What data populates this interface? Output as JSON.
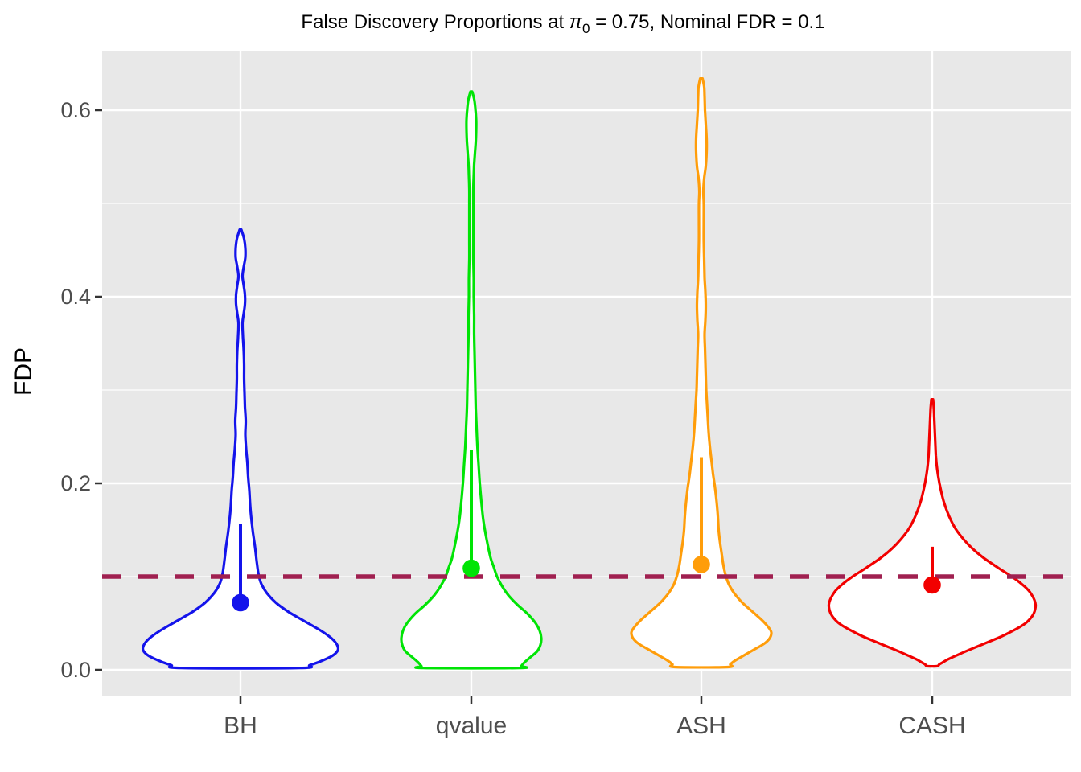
{
  "title": {
    "prefix": "False Discovery Proportions at ",
    "pi": "π",
    "pi_sub": "0",
    "suffix": " = 0.75, Nominal FDR = 0.1"
  },
  "y_axis": {
    "label": "FDP",
    "tick_labels": [
      "0.0",
      "0.2",
      "0.4",
      "0.6"
    ],
    "tick_values": [
      0.0,
      0.2,
      0.4,
      0.6
    ],
    "minor_values": [
      0.1,
      0.3,
      0.5
    ]
  },
  "x_axis": {
    "categories": [
      "BH",
      "qvalue",
      "ASH",
      "CASH"
    ]
  },
  "reference_line": {
    "value": 0.1,
    "color": "#A02050",
    "style": "dashed"
  },
  "panel": {
    "background": "#E8E8E8",
    "gridline_color": "#FFFFFF",
    "tick_color": "#333333",
    "axis_text_color": "#4D4D4D"
  },
  "chart_data": {
    "type": "violin",
    "title": "False Discovery Proportions at π0 = 0.75, Nominal FDR = 0.1",
    "xlabel": "",
    "ylabel": "FDP",
    "ylim": [
      -0.028,
      0.664
    ],
    "y_breaks": [
      0.0,
      0.2,
      0.4,
      0.6
    ],
    "y_minor_breaks": [
      0.1,
      0.3,
      0.5
    ],
    "grid": true,
    "nominal_fdr": 0.1,
    "pi0": 0.75,
    "categories": [
      "BH",
      "qvalue",
      "ASH",
      "CASH"
    ],
    "series": [
      {
        "name": "BH",
        "color": "#1414EB",
        "mean": 0.072,
        "upper": 0.156,
        "max": 0.472,
        "min": 0.002,
        "profile": [
          [
            0.472,
            1
          ],
          [
            0.462,
            4.5
          ],
          [
            0.452,
            6
          ],
          [
            0.442,
            6
          ],
          [
            0.432,
            4
          ],
          [
            0.422,
            2.5
          ],
          [
            0.412,
            4
          ],
          [
            0.402,
            5.5
          ],
          [
            0.392,
            5.5
          ],
          [
            0.382,
            4
          ],
          [
            0.372,
            2.5
          ],
          [
            0.357,
            3
          ],
          [
            0.342,
            4
          ],
          [
            0.327,
            4.5
          ],
          [
            0.312,
            4.5
          ],
          [
            0.297,
            5
          ],
          [
            0.282,
            5.5
          ],
          [
            0.267,
            6.5
          ],
          [
            0.252,
            6
          ],
          [
            0.237,
            7
          ],
          [
            0.222,
            8.5
          ],
          [
            0.207,
            9.5
          ],
          [
            0.192,
            11
          ],
          [
            0.177,
            12
          ],
          [
            0.162,
            13.5
          ],
          [
            0.147,
            15.5
          ],
          [
            0.132,
            18
          ],
          [
            0.117,
            20
          ],
          [
            0.102,
            22.5
          ],
          [
            0.092,
            26
          ],
          [
            0.082,
            33
          ],
          [
            0.072,
            44
          ],
          [
            0.062,
            60
          ],
          [
            0.052,
            80
          ],
          [
            0.042,
            100
          ],
          [
            0.034,
            113
          ],
          [
            0.027,
            120
          ],
          [
            0.021,
            121
          ],
          [
            0.015,
            114
          ],
          [
            0.009,
            99
          ],
          [
            0.005,
            86
          ],
          [
            0.002,
            74
          ]
        ]
      },
      {
        "name": "qvalue",
        "color": "#00E405",
        "mean": 0.109,
        "upper": 0.236,
        "max": 0.62,
        "min": 0.002,
        "profile": [
          [
            0.62,
            1
          ],
          [
            0.612,
            3.5
          ],
          [
            0.602,
            5
          ],
          [
            0.59,
            6
          ],
          [
            0.578,
            6
          ],
          [
            0.566,
            5.5
          ],
          [
            0.554,
            4.5
          ],
          [
            0.542,
            3.5
          ],
          [
            0.53,
            3
          ],
          [
            0.515,
            2.5
          ],
          [
            0.5,
            2.5
          ],
          [
            0.48,
            2.5
          ],
          [
            0.46,
            2.5
          ],
          [
            0.44,
            2.5
          ],
          [
            0.42,
            3
          ],
          [
            0.4,
            3
          ],
          [
            0.38,
            3.5
          ],
          [
            0.36,
            3.5
          ],
          [
            0.34,
            4
          ],
          [
            0.32,
            4.5
          ],
          [
            0.3,
            5
          ],
          [
            0.28,
            5.5
          ],
          [
            0.26,
            6.5
          ],
          [
            0.24,
            7.5
          ],
          [
            0.22,
            9
          ],
          [
            0.2,
            10.5
          ],
          [
            0.18,
            12.5
          ],
          [
            0.16,
            15
          ],
          [
            0.14,
            19
          ],
          [
            0.12,
            24
          ],
          [
            0.11,
            28
          ],
          [
            0.1,
            32
          ],
          [
            0.09,
            38
          ],
          [
            0.08,
            46
          ],
          [
            0.07,
            57
          ],
          [
            0.06,
            70
          ],
          [
            0.05,
            80
          ],
          [
            0.042,
            85
          ],
          [
            0.034,
            87
          ],
          [
            0.027,
            86
          ],
          [
            0.02,
            82
          ],
          [
            0.014,
            74
          ],
          [
            0.008,
            66
          ],
          [
            0.004,
            62
          ],
          [
            0.002,
            60
          ]
        ]
      },
      {
        "name": "ASH",
        "color": "#FF9D0A",
        "mean": 0.113,
        "upper": 0.228,
        "max": 0.634,
        "min": 0.003,
        "profile": [
          [
            0.634,
            1.5
          ],
          [
            0.625,
            3.5
          ],
          [
            0.615,
            4
          ],
          [
            0.6,
            4.5
          ],
          [
            0.585,
            5.5
          ],
          [
            0.57,
            6.5
          ],
          [
            0.555,
            6.5
          ],
          [
            0.54,
            5.5
          ],
          [
            0.527,
            3.5
          ],
          [
            0.513,
            2.5
          ],
          [
            0.5,
            3
          ],
          [
            0.48,
            3
          ],
          [
            0.46,
            3
          ],
          [
            0.44,
            3.5
          ],
          [
            0.42,
            4
          ],
          [
            0.405,
            5
          ],
          [
            0.39,
            5.5
          ],
          [
            0.375,
            5
          ],
          [
            0.36,
            4
          ],
          [
            0.345,
            4.5
          ],
          [
            0.33,
            5
          ],
          [
            0.315,
            5.5
          ],
          [
            0.3,
            6
          ],
          [
            0.285,
            7
          ],
          [
            0.27,
            8
          ],
          [
            0.255,
            9
          ],
          [
            0.24,
            10.5
          ],
          [
            0.225,
            12.5
          ],
          [
            0.21,
            14.5
          ],
          [
            0.195,
            17
          ],
          [
            0.18,
            19
          ],
          [
            0.165,
            20.5
          ],
          [
            0.15,
            21.5
          ],
          [
            0.138,
            23
          ],
          [
            0.126,
            25
          ],
          [
            0.114,
            27
          ],
          [
            0.102,
            30
          ],
          [
            0.092,
            34
          ],
          [
            0.082,
            41
          ],
          [
            0.072,
            51
          ],
          [
            0.062,
            64
          ],
          [
            0.052,
            77
          ],
          [
            0.045,
            84
          ],
          [
            0.04,
            87
          ],
          [
            0.034,
            85
          ],
          [
            0.028,
            78
          ],
          [
            0.022,
            66
          ],
          [
            0.016,
            54
          ],
          [
            0.01,
            42
          ],
          [
            0.006,
            36
          ],
          [
            0.003,
            33
          ]
        ]
      },
      {
        "name": "CASH",
        "color": "#F20000",
        "mean": 0.091,
        "upper": 0.132,
        "max": 0.29,
        "min": 0.004,
        "profile": [
          [
            0.29,
            1
          ],
          [
            0.28,
            2
          ],
          [
            0.27,
            2.5
          ],
          [
            0.26,
            3
          ],
          [
            0.25,
            3.5
          ],
          [
            0.24,
            4
          ],
          [
            0.23,
            4.5
          ],
          [
            0.22,
            5.5
          ],
          [
            0.21,
            7
          ],
          [
            0.2,
            9
          ],
          [
            0.19,
            11.5
          ],
          [
            0.18,
            14.5
          ],
          [
            0.17,
            18.5
          ],
          [
            0.16,
            23.5
          ],
          [
            0.15,
            30
          ],
          [
            0.14,
            39
          ],
          [
            0.13,
            50
          ],
          [
            0.12,
            64
          ],
          [
            0.11,
            81
          ],
          [
            0.1,
            99
          ],
          [
            0.095,
            107
          ],
          [
            0.09,
            114
          ],
          [
            0.085,
            120
          ],
          [
            0.08,
            124
          ],
          [
            0.075,
            127
          ],
          [
            0.07,
            128.5
          ],
          [
            0.065,
            128
          ],
          [
            0.06,
            126
          ],
          [
            0.055,
            122
          ],
          [
            0.05,
            116
          ],
          [
            0.045,
            107
          ],
          [
            0.04,
            96
          ],
          [
            0.035,
            84
          ],
          [
            0.03,
            70
          ],
          [
            0.025,
            56
          ],
          [
            0.02,
            42
          ],
          [
            0.015,
            29
          ],
          [
            0.011,
            19
          ],
          [
            0.008,
            13
          ],
          [
            0.006,
            9
          ],
          [
            0.004,
            6
          ]
        ]
      }
    ]
  }
}
